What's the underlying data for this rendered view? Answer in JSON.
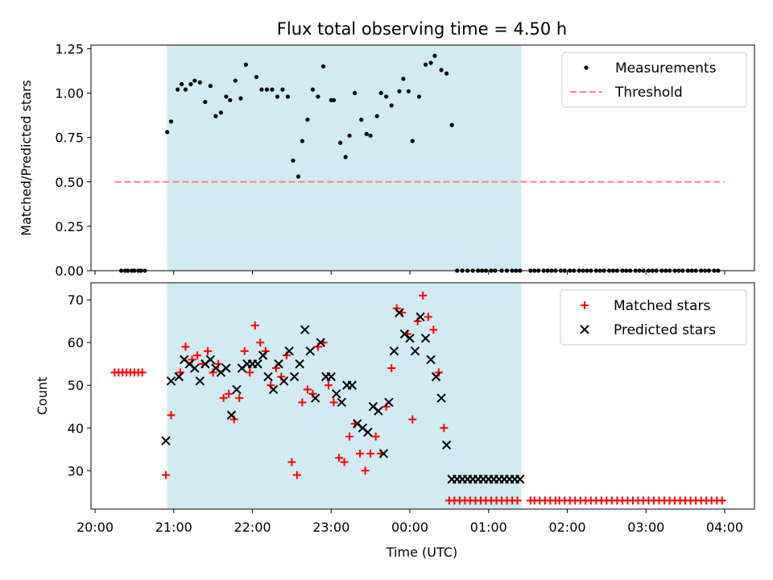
{
  "chart_data": {
    "title": "Flux total observing time = 4.50 h",
    "x_axis": {
      "label": "Time (UTC)",
      "range": [
        "20:00",
        "04:00"
      ],
      "tick_labels": [
        "20:00",
        "21:00",
        "22:00",
        "23:00",
        "00:00",
        "01:00",
        "02:00",
        "03:00",
        "04:00"
      ]
    },
    "highlight_span": {
      "start": "20:55",
      "end": "01:25",
      "color": "#add8e6"
    },
    "panels": [
      {
        "type": "scatter",
        "ylabel": "Matched/Predicted stars",
        "ylim": [
          0,
          1.27
        ],
        "yticks": [
          0,
          0.25,
          0.5,
          0.75,
          1.0,
          1.25
        ],
        "ytick_labels": [
          "0.00",
          "0.25",
          "0.50",
          "0.75",
          "1.00",
          "1.25"
        ],
        "grid": false,
        "legend_position": "top-right",
        "series": [
          {
            "name": "Measurements",
            "color": "#000000",
            "marker": "dot",
            "x": [
              "20:20",
              "20:23",
              "20:25",
              "20:28",
              "20:30",
              "20:33",
              "20:35",
              "20:38",
              "20:55",
              "20:58",
              "21:03",
              "21:06",
              "21:09",
              "21:13",
              "21:16",
              "21:20",
              "21:24",
              "21:28",
              "21:32",
              "21:36",
              "21:40",
              "21:43",
              "21:47",
              "21:51",
              "21:55",
              "22:03",
              "22:07",
              "22:11",
              "22:15",
              "22:19",
              "22:23",
              "22:27",
              "22:31",
              "22:35",
              "22:38",
              "22:42",
              "22:46",
              "22:50",
              "22:54",
              "23:00",
              "23:02",
              "23:07",
              "23:11",
              "23:14",
              "23:18",
              "23:23",
              "23:27",
              "23:30",
              "23:35",
              "23:38",
              "23:42",
              "23:46",
              "23:52",
              "23:55",
              "23:59",
              "00:02",
              "00:07",
              "00:12",
              "00:16",
              "00:19",
              "00:24",
              "00:28",
              "00:32",
              "00:36",
              "00:40",
              "00:44",
              "00:48",
              "00:52",
              "00:55",
              "00:58",
              "01:02",
              "01:05",
              "01:10",
              "01:14",
              "01:18",
              "01:21",
              "01:24",
              "01:32",
              "01:35",
              "01:38",
              "01:42",
              "01:45",
              "01:48",
              "01:51",
              "01:55",
              "01:58",
              "02:02",
              "02:05",
              "02:09",
              "02:12",
              "02:15",
              "02:18",
              "02:22",
              "02:25",
              "02:28",
              "02:32",
              "02:35",
              "02:38",
              "02:42",
              "02:45",
              "02:48",
              "02:52",
              "02:55",
              "02:58",
              "03:02",
              "03:05",
              "03:08",
              "03:12",
              "03:15",
              "03:18",
              "03:22",
              "03:25",
              "03:28",
              "03:32",
              "03:35",
              "03:38",
              "03:42",
              "03:45",
              "03:48",
              "03:52",
              "03:55"
            ],
            "y": [
              0,
              0,
              0,
              0,
              0,
              0,
              0,
              0,
              0.78,
              0.84,
              1.02,
              1.05,
              1.02,
              1.05,
              1.07,
              1.06,
              0.95,
              1.04,
              0.87,
              0.89,
              0.98,
              0.96,
              1.07,
              0.97,
              1.16,
              1.09,
              1.02,
              1.02,
              1.02,
              0.98,
              1.02,
              0.98,
              0.62,
              0.53,
              0.73,
              0.85,
              1.02,
              0.98,
              1.15,
              0.96,
              0.96,
              0.72,
              0.64,
              0.76,
              1.0,
              0.85,
              0.77,
              0.76,
              0.87,
              1.0,
              0.98,
              0.93,
              1.01,
              1.08,
              1.01,
              0.73,
              0.98,
              1.16,
              1.17,
              1.21,
              1.13,
              1.11,
              0.82,
              0,
              0,
              0,
              0,
              0,
              0,
              0,
              0,
              0,
              0,
              0,
              0,
              0,
              0,
              0,
              0,
              0,
              0,
              0,
              0,
              0,
              0,
              0,
              0,
              0,
              0,
              0,
              0,
              0,
              0,
              0,
              0,
              0,
              0,
              0,
              0,
              0,
              0,
              0,
              0,
              0,
              0,
              0,
              0,
              0,
              0,
              0,
              0,
              0,
              0,
              0,
              0,
              0,
              0,
              0,
              0,
              0,
              0
            ]
          },
          {
            "name": "Threshold",
            "color": "#ff7f7f",
            "style": "dashed",
            "x": [
              "20:15",
              "04:00"
            ],
            "y": [
              0.5,
              0.5
            ]
          }
        ]
      },
      {
        "type": "scatter",
        "ylabel": "Count",
        "ylim": [
          21,
          74
        ],
        "yticks": [
          30,
          40,
          50,
          60,
          70
        ],
        "ytick_labels": [
          "30",
          "40",
          "50",
          "60",
          "70"
        ],
        "grid": false,
        "legend_position": "top-right",
        "series": [
          {
            "name": "Matched stars",
            "color": "#ff0000",
            "marker": "plus",
            "x": [
              "20:15",
              "20:18",
              "20:21",
              "20:24",
              "20:27",
              "20:30",
              "20:33",
              "20:36",
              "20:54",
              "20:58",
              "21:05",
              "21:09",
              "21:14",
              "21:18",
              "21:22",
              "21:26",
              "21:30",
              "21:34",
              "21:38",
              "21:42",
              "21:46",
              "21:50",
              "21:54",
              "21:58",
              "22:02",
              "22:06",
              "22:10",
              "22:14",
              "22:18",
              "22:22",
              "22:26",
              "22:30",
              "22:34",
              "22:38",
              "22:42",
              "22:46",
              "22:50",
              "22:54",
              "22:58",
              "23:02",
              "23:06",
              "23:10",
              "23:14",
              "23:18",
              "23:22",
              "23:26",
              "23:30",
              "23:34",
              "23:38",
              "23:42",
              "23:46",
              "23:50",
              "23:54",
              "23:58",
              "00:02",
              "00:06",
              "00:10",
              "00:14",
              "00:18",
              "00:22",
              "00:26",
              "00:30",
              "00:34",
              "00:38",
              "00:42",
              "00:46",
              "00:50",
              "00:54",
              "00:58",
              "01:02",
              "01:06",
              "01:10",
              "01:14",
              "01:18",
              "01:22",
              "01:32",
              "01:35",
              "01:39",
              "01:43",
              "01:47",
              "01:51",
              "01:54",
              "01:58",
              "02:02",
              "02:06",
              "02:10",
              "02:14",
              "02:18",
              "02:22",
              "02:26",
              "02:30",
              "02:34",
              "02:38",
              "02:42",
              "02:46",
              "02:50",
              "02:54",
              "02:58",
              "03:02",
              "03:06",
              "03:10",
              "03:14",
              "03:18",
              "03:22",
              "03:26",
              "03:30",
              "03:34",
              "03:38",
              "03:42",
              "03:46",
              "03:50",
              "03:54",
              "03:58"
            ],
            "y": [
              53,
              53,
              53,
              53,
              53,
              53,
              53,
              53,
              29,
              43,
              53,
              59,
              56,
              57,
              55,
              58,
              53,
              55,
              47,
              48,
              42,
              47,
              58,
              53,
              64,
              60,
              58,
              50,
              54,
              52,
              57,
              32,
              29,
              46,
              49,
              48,
              59,
              60,
              50,
              46,
              33,
              32,
              38,
              41,
              34,
              30,
              34,
              38,
              34,
              45,
              54,
              68,
              67,
              62,
              42,
              65,
              71,
              66,
              63,
              53,
              40,
              23,
              23,
              23,
              23,
              23,
              23,
              23,
              23,
              23,
              23,
              23,
              23,
              23,
              23,
              23,
              23,
              23,
              23,
              23,
              23,
              23,
              23,
              23,
              23,
              23,
              23,
              23,
              23,
              23,
              23,
              23,
              23,
              23,
              23,
              23,
              23,
              23,
              23,
              23,
              23,
              23,
              23,
              23,
              23,
              23,
              23,
              23,
              23,
              23,
              23,
              23,
              23
            ]
          },
          {
            "name": "Predicted stars",
            "color": "#000000",
            "marker": "x",
            "x": [
              "20:54",
              "20:58",
              "21:04",
              "21:08",
              "21:12",
              "21:16",
              "21:20",
              "21:24",
              "21:28",
              "21:32",
              "21:36",
              "21:40",
              "21:44",
              "21:48",
              "21:52",
              "21:56",
              "22:00",
              "22:04",
              "22:08",
              "22:12",
              "22:16",
              "22:20",
              "22:24",
              "22:28",
              "22:32",
              "22:36",
              "22:40",
              "22:44",
              "22:48",
              "22:52",
              "22:56",
              "23:00",
              "23:04",
              "23:08",
              "23:12",
              "23:16",
              "23:20",
              "23:24",
              "23:28",
              "23:32",
              "23:36",
              "23:40",
              "23:44",
              "23:48",
              "23:52",
              "23:56",
              "00:00",
              "00:04",
              "00:08",
              "00:12",
              "00:16",
              "00:20",
              "00:24",
              "00:28",
              "00:32",
              "00:36",
              "00:40",
              "00:44",
              "00:48",
              "00:52",
              "00:56",
              "01:00",
              "01:04",
              "01:08",
              "01:12",
              "01:16",
              "01:20",
              "01:24"
            ],
            "y": [
              37,
              51,
              52,
              56,
              55,
              54,
              51,
              55,
              56,
              54,
              53,
              54,
              43,
              49,
              54,
              55,
              55,
              55,
              57,
              52,
              49,
              55,
              51,
              58,
              52,
              55,
              63,
              58,
              47,
              60,
              52,
              52,
              48,
              46,
              50,
              50,
              41,
              40,
              39,
              45,
              44,
              34,
              46,
              58,
              67,
              62,
              61,
              58,
              66,
              61,
              56,
              52,
              47,
              36,
              28,
              28,
              28,
              28,
              28,
              28,
              28,
              28,
              28,
              28,
              28,
              28,
              28,
              28
            ]
          }
        ]
      }
    ]
  }
}
